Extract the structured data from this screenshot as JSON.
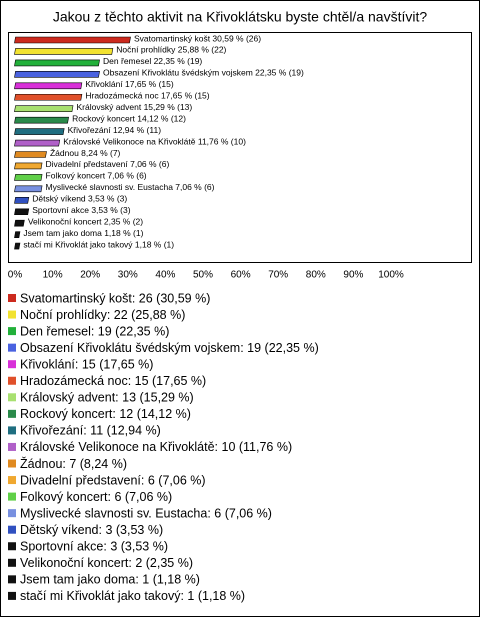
{
  "chart_data": {
    "type": "bar",
    "orientation": "horizontal",
    "title": "Jakou z těchto aktivit na Křivoklátsku byste chtěl/a navštívit?",
    "values": [
      30.59,
      25.88,
      22.35,
      22.35,
      17.65,
      17.65,
      15.29,
      14.12,
      12.94,
      11.76,
      8.24,
      7.06,
      7.06,
      7.06,
      3.53,
      3.53,
      2.35,
      1.18,
      1.18
    ],
    "counts": [
      26,
      22,
      19,
      19,
      15,
      15,
      13,
      12,
      11,
      10,
      7,
      6,
      6,
      6,
      3,
      3,
      2,
      1,
      1
    ],
    "value_labels": [
      "Svatomartinský košt 30,59 % (26)",
      "Noční prohlídky 25,88 % (22)",
      "Den řemesel 22,35 % (19)",
      "Obsazení Křivoklátu švédským vojskem 22,35 % (19)",
      "Křivoklání 17,65 % (15)",
      "Hradozámecká noc 17,65 % (15)",
      "Královský advent 15,29 % (13)",
      "Rockový koncert 14,12 % (12)",
      "Křivořezání 12,94 % (11)",
      "Královské Velikonoce na Křivoklátě 11,76 % (10)",
      "Žádnou 8,24 % (7)",
      "Divadelní představení 7,06 % (6)",
      "Folkový koncert 7,06 % (6)",
      "Myslivecké slavnosti sv. Eustacha 7,06 % (6)",
      "Dětský víkend 3,53 % (3)",
      "Sportovní akce 3,53 % (3)",
      "Velikonoční koncert 2,35 % (2)",
      "Jsem tam jako doma 1,18 % (1)",
      "stačí mi Křivoklát jako takový 1,18 % (1)"
    ],
    "legend_labels": [
      "Svatomartinský košt: 26 (30,59 %)",
      "Noční prohlídky: 22 (25,88 %)",
      "Den řemesel: 19 (22,35 %)",
      "Obsazení Křivoklátu švédským vojskem: 19 (22,35 %)",
      "Křivoklání: 15 (17,65 %)",
      "Hradozámecká noc: 15 (17,65 %)",
      "Královský advent: 13 (15,29 %)",
      "Rockový koncert: 12 (14,12 %)",
      "Křivořezání: 11 (12,94 %)",
      "Královské Velikonoce na Křivoklátě: 10 (11,76 %)",
      "Žádnou: 7 (8,24 %)",
      "Divadelní představení: 6 (7,06 %)",
      "Folkový koncert: 6 (7,06 %)",
      "Myslivecké slavnosti sv. Eustacha: 6 (7,06 %)",
      "Dětský víkend: 3 (3,53 %)",
      "Sportovní akce: 3 (3,53 %)",
      "Velikonoční koncert: 2 (2,35 %)",
      "Jsem tam jako doma: 1 (1,18 %)",
      "stačí mi Křivoklát jako takový: 1 (1,18 %)"
    ],
    "colors": [
      "#cc2a1e",
      "#f2e230",
      "#22b03a",
      "#4a62e0",
      "#d830d8",
      "#e0502a",
      "#a8e070",
      "#2a8a4a",
      "#1f6e80",
      "#b060c8",
      "#e08a20",
      "#f0a830",
      "#60d048",
      "#7890e0",
      "#3050c0",
      "#111111",
      "#111111",
      "#111111",
      "#111111"
    ],
    "xlim": [
      0,
      100
    ],
    "xticks": [
      {
        "value": 0,
        "label": "0%"
      },
      {
        "value": 10,
        "label": "10%"
      },
      {
        "value": 20,
        "label": "20%"
      },
      {
        "value": 30,
        "label": "30%"
      },
      {
        "value": 40,
        "label": "40%"
      },
      {
        "value": 50,
        "label": "50%"
      },
      {
        "value": 60,
        "label": "60%"
      },
      {
        "value": 70,
        "label": "70%"
      },
      {
        "value": 80,
        "label": "80%"
      },
      {
        "value": 90,
        "label": "90%"
      },
      {
        "value": 100,
        "label": "100%"
      }
    ],
    "grid": false
  }
}
